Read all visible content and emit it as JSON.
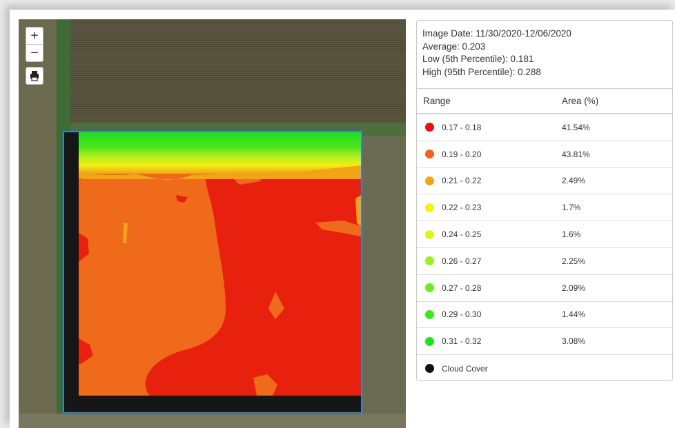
{
  "map": {
    "zoom_in_label": "+",
    "zoom_out_label": "−",
    "colors": {
      "border": "#2e86de",
      "red": "#e8210f",
      "orange": "#ef6a1a",
      "cloud": "#161616"
    }
  },
  "stats": {
    "image_date": "Image Date: 11/30/2020-12/06/2020",
    "average": "Average: 0.203",
    "low": "Low (5th Percentile): 0.181",
    "high": "High (95th Percentile): 0.288"
  },
  "legend": {
    "header_range": "Range",
    "header_area": "Area (%)",
    "rows": [
      {
        "range": "0.17 - 0.18",
        "area": "41.54%",
        "color": "#e8130f"
      },
      {
        "range": "0.19 - 0.20",
        "area": "43.81%",
        "color": "#ef6419"
      },
      {
        "range": "0.21 - 0.22",
        "area": "2.49%",
        "color": "#f5a11a"
      },
      {
        "range": "0.22 - 0.23",
        "area": "1.7%",
        "color": "#f6f20f"
      },
      {
        "range": "0.24 - 0.25",
        "area": "1.6%",
        "color": "#d7f520"
      },
      {
        "range": "0.26 - 0.27",
        "area": "2.25%",
        "color": "#9af01e"
      },
      {
        "range": "0.27 - 0.28",
        "area": "2.09%",
        "color": "#6eec1f"
      },
      {
        "range": "0.29 - 0.30",
        "area": "1.44%",
        "color": "#3fe71d"
      },
      {
        "range": "0.31 - 0.32",
        "area": "3.08%",
        "color": "#1fe31b"
      },
      {
        "range": "Cloud Cover",
        "area": "",
        "color": "#111111"
      }
    ]
  }
}
